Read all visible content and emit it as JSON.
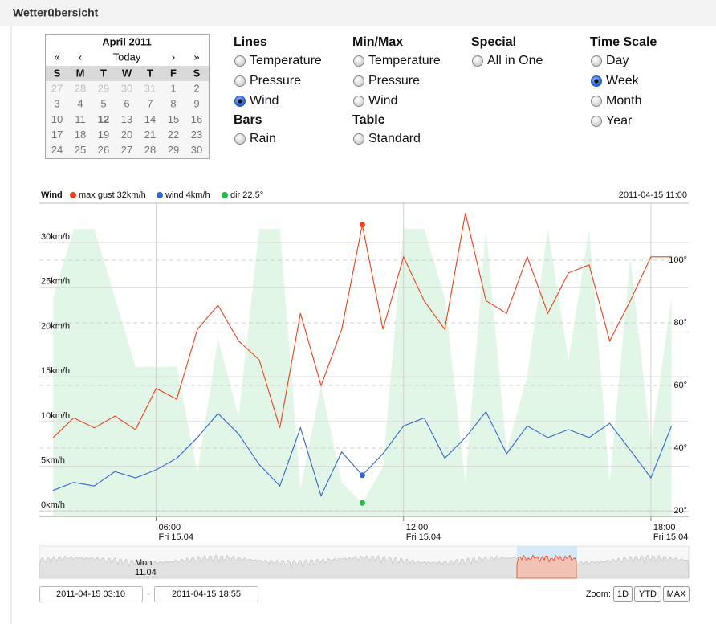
{
  "header": {
    "title": "Wetterübersicht"
  },
  "calendar": {
    "title": "April 2011",
    "nav": [
      "«",
      "‹",
      "Today",
      "›",
      "»"
    ],
    "weekdays": [
      "S",
      "M",
      "T",
      "W",
      "T",
      "F",
      "S"
    ],
    "weeks": [
      [
        27,
        28,
        29,
        30,
        31,
        1,
        2
      ],
      [
        3,
        4,
        5,
        6,
        7,
        8,
        9
      ],
      [
        10,
        11,
        12,
        13,
        14,
        15,
        16
      ],
      [
        17,
        18,
        19,
        20,
        21,
        22,
        23
      ],
      [
        24,
        25,
        26,
        27,
        28,
        29,
        30
      ]
    ],
    "selected_day": 12
  },
  "options": {
    "columns": [
      {
        "groups": [
          {
            "title": "Lines",
            "items": [
              {
                "label": "Temperature",
                "selected": false
              },
              {
                "label": "Pressure",
                "selected": false
              },
              {
                "label": "Wind",
                "selected": true
              }
            ]
          },
          {
            "title": "Bars",
            "items": [
              {
                "label": "Rain",
                "selected": false
              }
            ]
          }
        ]
      },
      {
        "groups": [
          {
            "title": "Min/Max",
            "items": [
              {
                "label": "Temperature",
                "selected": false
              },
              {
                "label": "Pressure",
                "selected": false
              },
              {
                "label": "Wind",
                "selected": false
              }
            ]
          },
          {
            "title": "Table",
            "items": [
              {
                "label": "Standard",
                "selected": false
              }
            ]
          }
        ]
      },
      {
        "groups": [
          {
            "title": "Special",
            "items": [
              {
                "label": "All in One",
                "selected": false
              }
            ]
          }
        ]
      },
      {
        "groups": [
          {
            "title": "Time Scale",
            "items": [
              {
                "label": "Day",
                "selected": false
              },
              {
                "label": "Week",
                "selected": true
              },
              {
                "label": "Month",
                "selected": false
              },
              {
                "label": "Year",
                "selected": false
              }
            ]
          }
        ]
      }
    ]
  },
  "chart_data": {
    "type": "line",
    "title": "Wind",
    "subtitle": "2011-04-15 11:00",
    "x": [
      "2011-04-15 03:30",
      "2011-04-15 04:00",
      "2011-04-15 04:30",
      "2011-04-15 05:00",
      "2011-04-15 05:30",
      "2011-04-15 06:00",
      "2011-04-15 06:30",
      "2011-04-15 07:00",
      "2011-04-15 07:30",
      "2011-04-15 08:00",
      "2011-04-15 08:30",
      "2011-04-15 09:00",
      "2011-04-15 09:30",
      "2011-04-15 10:00",
      "2011-04-15 10:30",
      "2011-04-15 11:00",
      "2011-04-15 11:30",
      "2011-04-15 12:00",
      "2011-04-15 12:30",
      "2011-04-15 13:00",
      "2011-04-15 13:30",
      "2011-04-15 14:00",
      "2011-04-15 14:30",
      "2011-04-15 15:00",
      "2011-04-15 15:30",
      "2011-04-15 16:00",
      "2011-04-15 16:30",
      "2011-04-15 17:00",
      "2011-04-15 17:30",
      "2011-04-15 18:00",
      "2011-04-15 18:30"
    ],
    "series": [
      {
        "name": "max gust 32km/h",
        "color": "#e8431c",
        "kind": "line",
        "values": [
          8.2,
          10.4,
          9.3,
          10.6,
          9.1,
          13.7,
          12.5,
          20.3,
          23,
          19,
          16.9,
          9.3,
          22.1,
          14,
          20.3,
          32,
          20.3,
          28.4,
          23.5,
          20.3,
          33.3,
          23.5,
          22.1,
          28.4,
          22.1,
          26.6,
          27.5,
          19,
          23.5,
          28.4,
          28.4
        ]
      },
      {
        "name": "wind 4km/h",
        "color": "#3366cc",
        "kind": "line",
        "values": [
          2.3,
          3.2,
          2.8,
          4.4,
          3.7,
          4.6,
          5.9,
          8.2,
          10.9,
          8.6,
          5.2,
          2.8,
          9.3,
          1.7,
          6.6,
          4,
          6.4,
          9.5,
          10.4,
          5.9,
          8.2,
          11.1,
          6.4,
          9.5,
          8.2,
          9.1,
          8.2,
          9.8,
          6.8,
          3.7,
          9.5
        ]
      },
      {
        "name": "dir 22.5°",
        "color": "#22bb44",
        "kind": "area",
        "fill": "#e2f6e7",
        "axis": "y2",
        "values": [
          88,
          110,
          110,
          88,
          66,
          66,
          66,
          32,
          75,
          50,
          110,
          110,
          27,
          60,
          29,
          22.5,
          34,
          110,
          110,
          88,
          29,
          110,
          39,
          63,
          110,
          68,
          110,
          29,
          101,
          41,
          88
        ]
      }
    ],
    "xlim": [
      "2011-04-15 03:10",
      "2011-04-15 18:55"
    ],
    "xticks": [
      {
        "value": "2011-04-15 06:00",
        "label": [
          "06:00",
          "Fri 15.04"
        ]
      },
      {
        "value": "2011-04-15 12:00",
        "label": [
          "12:00",
          "Fri 15.04"
        ]
      },
      {
        "value": "2011-04-15 18:00",
        "label": [
          "18:00",
          "Fri 15.04"
        ]
      }
    ],
    "ylim": [
      -0.6,
      34.4
    ],
    "yticks": [
      {
        "value": 0,
        "label": "0km/h"
      },
      {
        "value": 5,
        "label": "5km/h"
      },
      {
        "value": 10,
        "label": "10km/h"
      },
      {
        "value": 15,
        "label": "15km/h"
      },
      {
        "value": 20,
        "label": "20km/h"
      },
      {
        "value": 25,
        "label": "25km/h"
      },
      {
        "value": 30,
        "label": "30km/h"
      }
    ],
    "y2lim": [
      18.2,
      118.2
    ],
    "y2ticks": [
      {
        "value": 20,
        "label": "20°"
      },
      {
        "value": 40,
        "label": "40°"
      },
      {
        "value": 60,
        "label": "60°"
      },
      {
        "value": 80,
        "label": "80°"
      },
      {
        "value": 100,
        "label": "100°"
      }
    ],
    "grid": true
  },
  "navigator": {
    "label": [
      "Mon",
      "11.04"
    ]
  },
  "range": {
    "from": "2011-04-15 03:10",
    "separator": "-",
    "to": "2011-04-15 18:55"
  },
  "zoom": {
    "label": "Zoom:",
    "buttons": [
      "1D",
      "YTD",
      "MAX"
    ]
  }
}
